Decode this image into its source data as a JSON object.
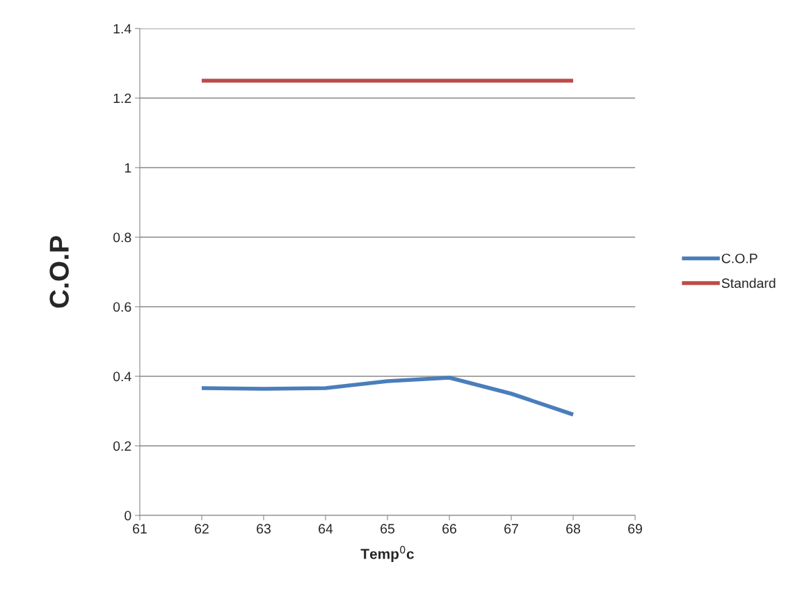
{
  "chart_data": {
    "type": "line",
    "xlabel": "Temp$^{0}$c",
    "ylabel": "C.O.P",
    "x": [
      62,
      63,
      64,
      65,
      66,
      67,
      68
    ],
    "series": [
      {
        "name": "C.O.P",
        "color": "#4a7ebb",
        "values": [
          0.366,
          0.364,
          0.366,
          0.386,
          0.396,
          0.35,
          0.29
        ]
      },
      {
        "name": "Standard",
        "color": "#be4b48",
        "values": [
          1.25,
          1.25,
          1.25,
          1.25,
          1.25,
          1.25,
          1.25
        ]
      }
    ],
    "xlim": [
      61,
      69
    ],
    "xticks": [
      61,
      62,
      63,
      64,
      65,
      66,
      67,
      68,
      69
    ],
    "ylim": [
      0,
      1.4
    ],
    "yticks": [
      0,
      0.2,
      0.4,
      0.6,
      0.8,
      1,
      1.2,
      1.4
    ],
    "grid": "y",
    "legend": "right",
    "marker": "none",
    "line_style": "solid"
  }
}
